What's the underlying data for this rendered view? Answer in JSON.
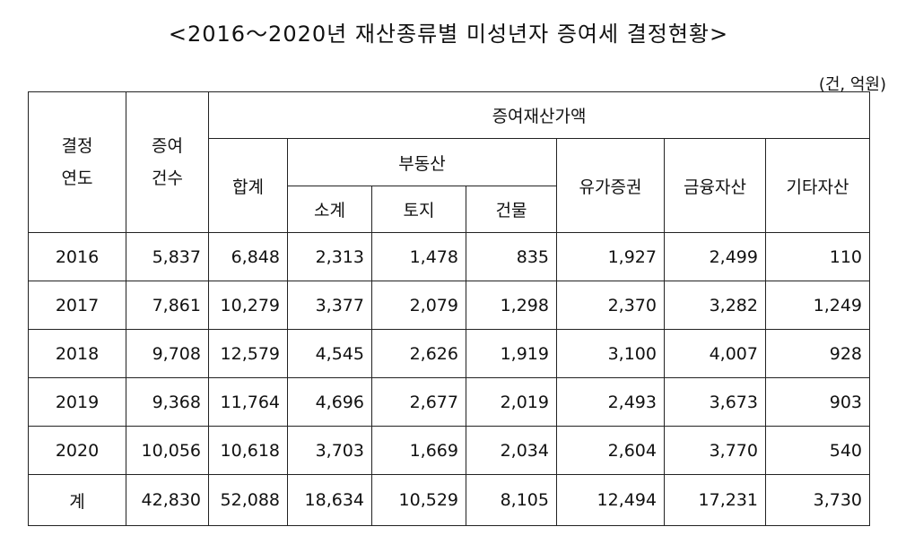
{
  "title": "<2016～2020년 재산종류별 미성년자 증여세 결정현황>",
  "unit": "(건, 억원)",
  "headers": {
    "year_line1": "결정",
    "year_line2": "연도",
    "count_line1": "증여",
    "count_line2": "건수",
    "gift_value": "증여재산가액",
    "total": "합계",
    "real_estate": "부동산",
    "subtotal": "소계",
    "land": "토지",
    "building": "건물",
    "securities": "유가증권",
    "financial": "금융자산",
    "other": "기타자산"
  },
  "rows": [
    {
      "year": "2016",
      "count": "5,837",
      "total": "6,848",
      "subtotal": "2,313",
      "land": "1,478",
      "building": "835",
      "securities": "1,927",
      "financial": "2,499",
      "other": "110"
    },
    {
      "year": "2017",
      "count": "7,861",
      "total": "10,279",
      "subtotal": "3,377",
      "land": "2,079",
      "building": "1,298",
      "securities": "2,370",
      "financial": "3,282",
      "other": "1,249"
    },
    {
      "year": "2018",
      "count": "9,708",
      "total": "12,579",
      "subtotal": "4,545",
      "land": "2,626",
      "building": "1,919",
      "securities": "3,100",
      "financial": "4,007",
      "other": "928"
    },
    {
      "year": "2019",
      "count": "9,368",
      "total": "11,764",
      "subtotal": "4,696",
      "land": "2,677",
      "building": "2,019",
      "securities": "2,493",
      "financial": "3,673",
      "other": "903"
    },
    {
      "year": "2020",
      "count": "10,056",
      "total": "10,618",
      "subtotal": "3,703",
      "land": "1,669",
      "building": "2,034",
      "securities": "2,604",
      "financial": "3,770",
      "other": "540"
    },
    {
      "year": "계",
      "count": "42,830",
      "total": "52,088",
      "subtotal": "18,634",
      "land": "10,529",
      "building": "8,105",
      "securities": "12,494",
      "financial": "17,231",
      "other": "3,730"
    }
  ]
}
